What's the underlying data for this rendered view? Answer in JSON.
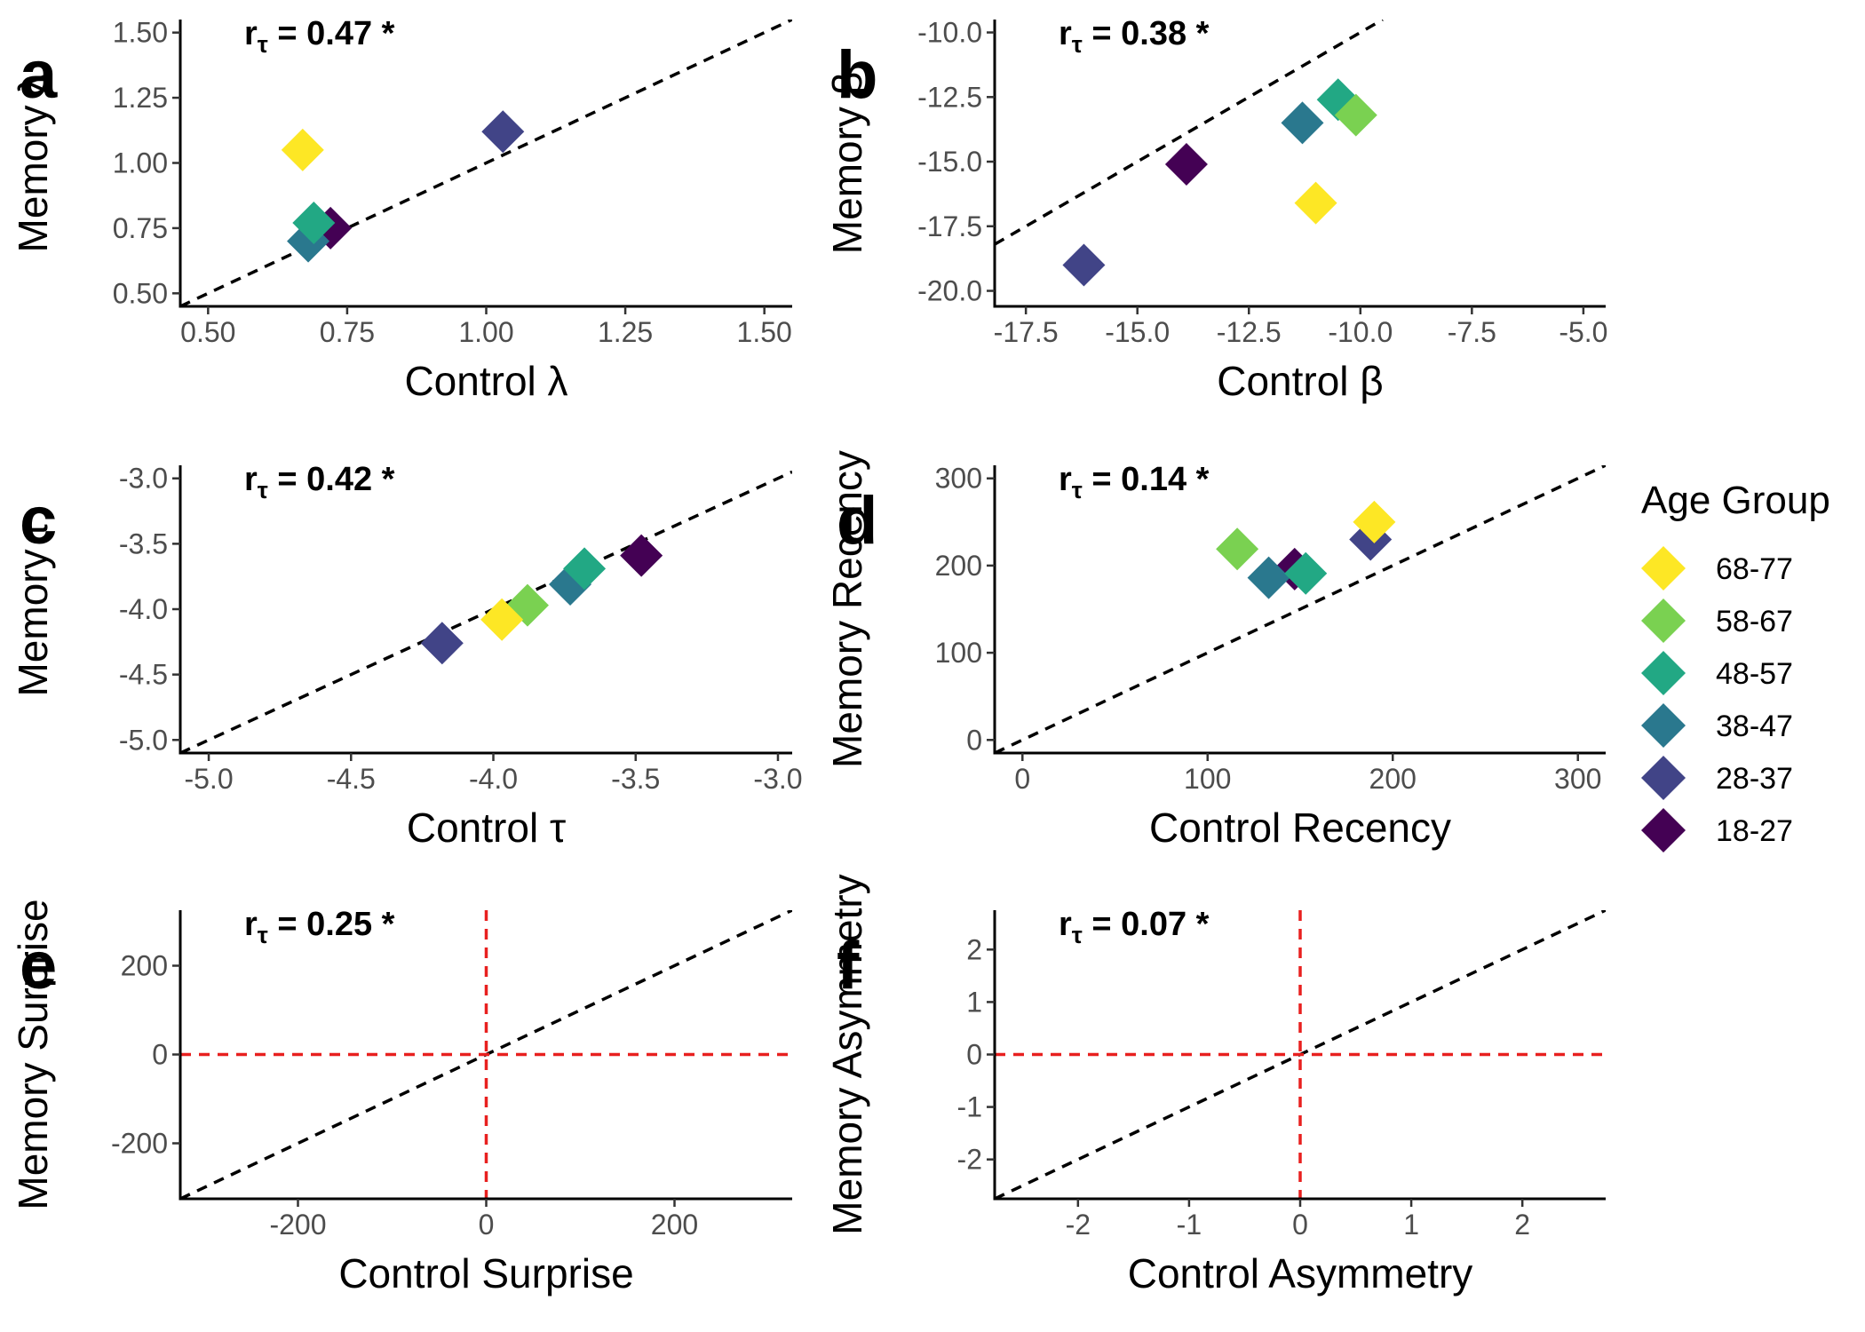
{
  "legend": {
    "title": "Age Group",
    "items": [
      {
        "label": "68-77",
        "color": "#FDE725"
      },
      {
        "label": "58-67",
        "color": "#7AD151"
      },
      {
        "label": "48-57",
        "color": "#22A884"
      },
      {
        "label": "38-47",
        "color": "#2A788E"
      },
      {
        "label": "28-37",
        "color": "#414487"
      },
      {
        "label": "18-27",
        "color": "#440154"
      }
    ]
  },
  "chart_data": [
    {
      "type": "scatter",
      "panel": "a",
      "xlabel": "Control λ",
      "ylabel": "Memory λ",
      "annotation": "rτ = 0.47 *",
      "annotation_main": "r",
      "annotation_sub": "τ",
      "annotation_rest": " = 0.47 *",
      "xlim": [
        0.45,
        1.55
      ],
      "ylim": [
        0.45,
        1.55
      ],
      "xticks": [
        0.5,
        0.75,
        1.0,
        1.25,
        1.5
      ],
      "xtick_labels": [
        "0.50",
        "0.75",
        "1.00",
        "1.25",
        "1.50"
      ],
      "yticks": [
        0.5,
        0.75,
        1.0,
        1.25,
        1.5
      ],
      "ytick_labels": [
        "0.50",
        "0.75",
        "1.00",
        "1.25",
        "1.50"
      ],
      "identity_line": true,
      "zero_lines": false,
      "points": [
        {
          "group": "18-27",
          "x": 0.72,
          "y": 0.75
        },
        {
          "group": "28-37",
          "x": 1.03,
          "y": 1.12
        },
        {
          "group": "38-47",
          "x": 0.68,
          "y": 0.7
        },
        {
          "group": "48-57",
          "x": 0.69,
          "y": 0.77
        },
        {
          "group": "68-77",
          "x": 0.67,
          "y": 1.05
        }
      ]
    },
    {
      "type": "scatter",
      "panel": "b",
      "xlabel": "Control β",
      "ylabel": "Memory β",
      "annotation": "rτ = 0.38 *",
      "annotation_main": "r",
      "annotation_sub": "τ",
      "annotation_rest": " = 0.38 *",
      "xlim": [
        -18.2,
        -4.5
      ],
      "ylim": [
        -20.6,
        -9.5
      ],
      "xticks": [
        -17.5,
        -15,
        -12.5,
        -10,
        -7.5,
        -5
      ],
      "xtick_labels": [
        "-17.5",
        "-15.0",
        "-12.5",
        "-10.0",
        "-7.5",
        "-5.0"
      ],
      "yticks": [
        -20,
        -17.5,
        -15,
        -12.5,
        -10
      ],
      "ytick_labels": [
        "-20.0",
        "-17.5",
        "-15.0",
        "-12.5",
        "-10.0"
      ],
      "identity_line": true,
      "zero_lines": false,
      "points": [
        {
          "group": "18-27",
          "x": -13.9,
          "y": -15.1
        },
        {
          "group": "28-37",
          "x": -16.2,
          "y": -19.0
        },
        {
          "group": "38-47",
          "x": -11.3,
          "y": -13.5
        },
        {
          "group": "48-57",
          "x": -10.5,
          "y": -12.6
        },
        {
          "group": "58-67",
          "x": -10.1,
          "y": -13.2
        },
        {
          "group": "68-77",
          "x": -11.0,
          "y": -16.6
        }
      ]
    },
    {
      "type": "scatter",
      "panel": "c",
      "xlabel": "Control τ",
      "ylabel": "Memory τ",
      "annotation": "rτ = 0.42 *",
      "annotation_main": "r",
      "annotation_sub": "τ",
      "annotation_rest": " = 0.42 *",
      "xlim": [
        -5.1,
        -2.95
      ],
      "ylim": [
        -5.1,
        -2.9
      ],
      "xticks": [
        -5,
        -4.5,
        -4,
        -3.5,
        -3
      ],
      "xtick_labels": [
        "-5.0",
        "-4.5",
        "-4.0",
        "-3.5",
        "-3.0"
      ],
      "yticks": [
        -5,
        -4.5,
        -4,
        -3.5,
        -3
      ],
      "ytick_labels": [
        "-5.0",
        "-4.5",
        "-4.0",
        "-3.5",
        "-3.0"
      ],
      "identity_line": true,
      "zero_lines": false,
      "points": [
        {
          "group": "18-27",
          "x": -3.48,
          "y": -3.59
        },
        {
          "group": "28-37",
          "x": -4.18,
          "y": -4.26
        },
        {
          "group": "38-47",
          "x": -3.73,
          "y": -3.81
        },
        {
          "group": "48-57",
          "x": -3.68,
          "y": -3.69
        },
        {
          "group": "58-67",
          "x": -3.88,
          "y": -3.97
        },
        {
          "group": "68-77",
          "x": -3.97,
          "y": -4.08
        }
      ]
    },
    {
      "type": "scatter",
      "panel": "d",
      "xlabel": "Control Recency",
      "ylabel": "Memory Recency",
      "annotation": "rτ = 0.14 *",
      "annotation_main": "r",
      "annotation_sub": "τ",
      "annotation_rest": " = 0.14 *",
      "xlim": [
        -15,
        315
      ],
      "ylim": [
        -15,
        315
      ],
      "xticks": [
        0,
        100,
        200,
        300
      ],
      "xtick_labels": [
        "0",
        "100",
        "200",
        "300"
      ],
      "yticks": [
        0,
        100,
        200,
        300
      ],
      "ytick_labels": [
        "0",
        "100",
        "200",
        "300"
      ],
      "identity_line": true,
      "zero_lines": false,
      "points": [
        {
          "group": "18-27",
          "x": 147,
          "y": 196
        },
        {
          "group": "28-37",
          "x": 188,
          "y": 230
        },
        {
          "group": "38-47",
          "x": 133,
          "y": 186
        },
        {
          "group": "48-57",
          "x": 153,
          "y": 191
        },
        {
          "group": "58-67",
          "x": 116,
          "y": 219
        },
        {
          "group": "68-77",
          "x": 190,
          "y": 250
        }
      ]
    },
    {
      "type": "scatter",
      "panel": "e",
      "xlabel": "Control Surprise",
      "ylabel": "Memory Surprise",
      "annotation": "rτ = 0.25 *",
      "annotation_main": "r",
      "annotation_sub": "τ",
      "annotation_rest": " = 0.25 *",
      "xlim": [
        -325,
        325
      ],
      "ylim": [
        -325,
        325
      ],
      "xticks": [
        -200,
        0,
        200
      ],
      "xtick_labels": [
        "-200",
        "0",
        "200"
      ],
      "yticks": [
        -200,
        0,
        200
      ],
      "ytick_labels": [
        "-200",
        "0",
        "200"
      ],
      "identity_line": true,
      "zero_lines": true,
      "points": []
    },
    {
      "type": "scatter",
      "panel": "f",
      "xlabel": "Control Asymmetry",
      "ylabel": "Memory Asymmetry",
      "annotation": "rτ = 0.07 *",
      "annotation_main": "r",
      "annotation_sub": "τ",
      "annotation_rest": " = 0.07 *",
      "xlim": [
        -2.75,
        2.75
      ],
      "ylim": [
        -2.75,
        2.75
      ],
      "xticks": [
        -2,
        -1,
        0,
        1,
        2
      ],
      "xtick_labels": [
        "-2",
        "-1",
        "0",
        "1",
        "2"
      ],
      "yticks": [
        -2,
        -1,
        0,
        1,
        2
      ],
      "ytick_labels": [
        "-2",
        "-1",
        "0",
        "1",
        "2"
      ],
      "identity_line": true,
      "zero_lines": true,
      "points": []
    }
  ]
}
